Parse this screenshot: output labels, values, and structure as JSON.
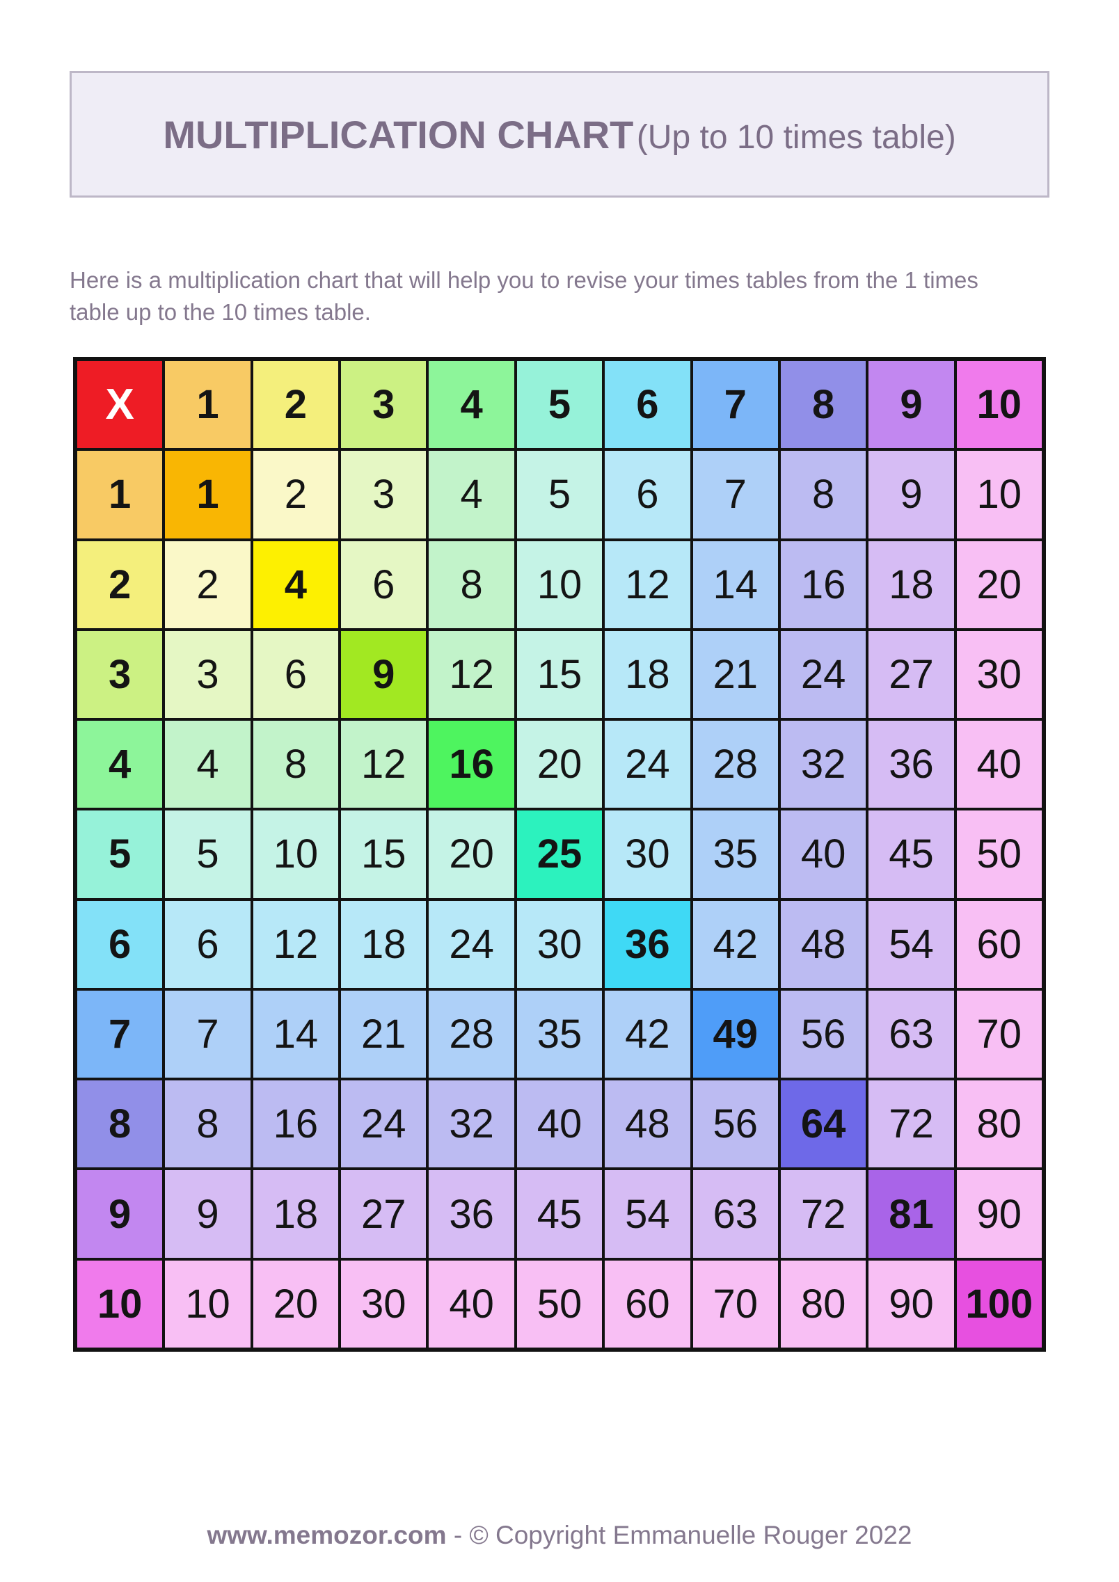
{
  "header": {
    "title_main": "MULTIPLICATION CHART",
    "title_suffix": "(Up to 10 times table)"
  },
  "description": "Here is a multiplication chart that will help you to revise your times tables from the 1 times table up to the 10 times table.",
  "footer": {
    "site": "www.memozor.com",
    "separator": " - ",
    "copyright": "© Copyright Emmanuelle Rouger 2022"
  },
  "chart_data": {
    "type": "table",
    "title": "Multiplication Chart (Up to 10 times table)",
    "corner_label": "X",
    "headers": [
      1,
      2,
      3,
      4,
      5,
      6,
      7,
      8,
      9,
      10
    ],
    "rows": [
      [
        1,
        2,
        3,
        4,
        5,
        6,
        7,
        8,
        9,
        10
      ],
      [
        2,
        4,
        6,
        8,
        10,
        12,
        14,
        16,
        18,
        20
      ],
      [
        3,
        6,
        9,
        12,
        15,
        18,
        21,
        24,
        27,
        30
      ],
      [
        4,
        8,
        12,
        16,
        20,
        24,
        28,
        32,
        36,
        40
      ],
      [
        5,
        10,
        15,
        20,
        25,
        30,
        35,
        40,
        45,
        50
      ],
      [
        6,
        12,
        18,
        24,
        30,
        36,
        42,
        48,
        54,
        60
      ],
      [
        7,
        14,
        21,
        28,
        35,
        42,
        49,
        56,
        63,
        70
      ],
      [
        8,
        16,
        24,
        32,
        40,
        48,
        56,
        64,
        72,
        80
      ],
      [
        9,
        18,
        27,
        36,
        45,
        54,
        63,
        72,
        81,
        90
      ],
      [
        10,
        20,
        30,
        40,
        50,
        60,
        70,
        80,
        90,
        100
      ]
    ]
  },
  "colors": {
    "x_cell_bg": "#ee1c25",
    "x_cell_text": "#ffffff",
    "grid_line": "#121212",
    "cell_text": "#141414",
    "title_text": "#7b6d86",
    "body_text": "#84788e",
    "title_box_bg": "#efedf6",
    "title_box_border": "#bdb7c7",
    "header_base": {
      "1": "#f8ca64",
      "2": "#f4ef7c",
      "3": "#ccf183",
      "4": "#8df59a",
      "5": "#96f2d9",
      "6": "#83e1f8",
      "7": "#7cb6f8",
      "8": "#918fe8",
      "9": "#c287f0",
      "10": "#f07bec"
    },
    "diagonal": {
      "1": "#f9b603",
      "4": "#fdf001",
      "9": "#a2e822",
      "16": "#4ef45f",
      "25": "#2cf2be",
      "36": "#3fd9f5",
      "49": "#4f9df8",
      "64": "#6e69e8",
      "81": "#a964e8",
      "100": "#e750e0"
    },
    "pale": {
      "2": "#faf8c8",
      "3": "#e5f7c4",
      "4": "#c2f3ca",
      "5": "#c5f3e6",
      "6": "#b7e8f8",
      "7": "#aed0f8",
      "8": "#bcbbf2",
      "9": "#d6bcf4",
      "10": "#f8bff4"
    }
  }
}
